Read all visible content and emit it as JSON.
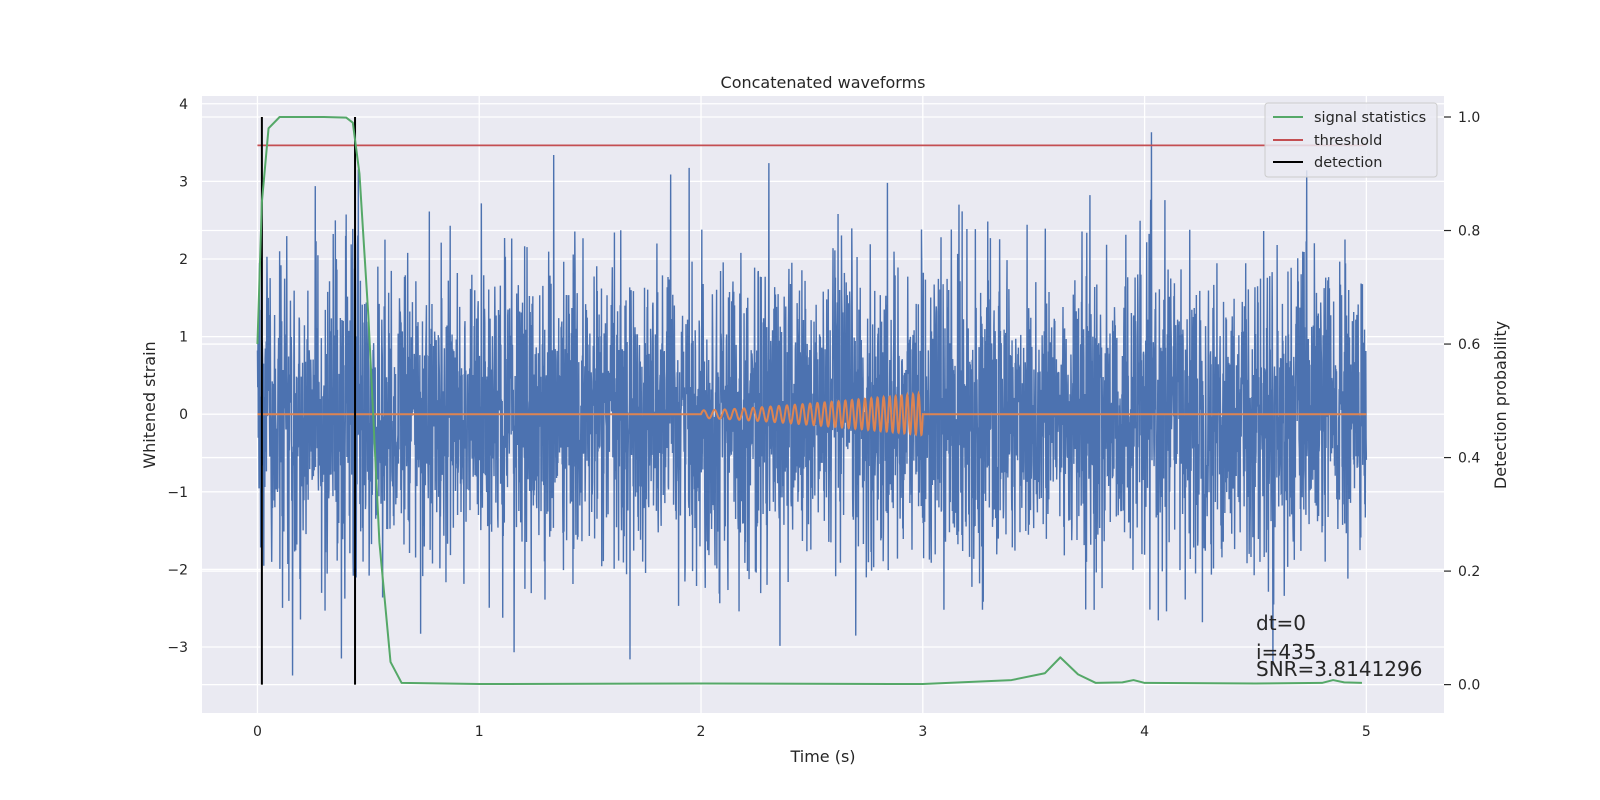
{
  "chart_data": {
    "type": "line",
    "title": "Concatenated waveforms",
    "xlabel": "Time (s)",
    "ylabel": "Whitened strain",
    "ylabel_right": "Detection probability",
    "xlim": [
      -0.25,
      5.35
    ],
    "ylim": [
      -3.85,
      4.1
    ],
    "ylim_right": [
      -0.05,
      1.037
    ],
    "x_ticks": [
      0,
      1,
      2,
      3,
      4,
      5
    ],
    "y_ticks": [
      -3,
      -2,
      -1,
      0,
      1,
      2,
      3,
      4
    ],
    "y_ticks_right": [
      0.0,
      0.2,
      0.4,
      0.6,
      0.8,
      1.0
    ],
    "x_tick_labels": [
      "0",
      "1",
      "2",
      "3",
      "4",
      "5"
    ],
    "y_tick_labels": [
      "−3",
      "−2",
      "−1",
      "0",
      "1",
      "2",
      "3",
      "4"
    ],
    "y_tick_labels_right": [
      "0.0",
      "0.2",
      "0.4",
      "0.6",
      "0.8",
      "1.0"
    ],
    "grid": true,
    "legend_position": "top-right",
    "series": [
      {
        "name": "",
        "axis": "left",
        "color": "#4c72b0",
        "style": "whitened strain noise (approximately Gaussian, sigma ~0.9, peaks ~ -3.5 to 3.7)",
        "x_range": [
          0,
          5
        ]
      },
      {
        "name": "",
        "axis": "left",
        "color": "#dd8452",
        "style": "injected chirp signal between t=2 and t=3, amplitude rising from ~0.05 to ~0.27, zero elsewhere",
        "x": [
          0,
          2,
          2.2,
          2.4,
          2.6,
          2.8,
          3.0,
          5
        ],
        "y": [
          0,
          0.05,
          0.09,
          0.13,
          0.17,
          0.22,
          0.27,
          0
        ]
      },
      {
        "name": "signal statistics",
        "axis": "right",
        "color": "#55a868",
        "x": [
          0,
          0.02,
          0.05,
          0.1,
          0.2,
          0.3,
          0.4,
          0.43,
          0.46,
          0.5,
          0.55,
          0.6,
          0.65,
          1,
          2,
          3,
          3.4,
          3.55,
          3.62,
          3.7,
          3.78,
          3.9,
          3.95,
          4.0,
          4.5,
          4.8,
          4.85,
          4.9,
          4.98
        ],
        "y": [
          0.6,
          0.85,
          0.98,
          1.0,
          1.0,
          1.0,
          0.999,
          0.99,
          0.9,
          0.65,
          0.25,
          0.04,
          0.003,
          0.001,
          0.002,
          0.001,
          0.008,
          0.02,
          0.048,
          0.018,
          0.003,
          0.004,
          0.008,
          0.003,
          0.002,
          0.003,
          0.008,
          0.004,
          0.003
        ]
      },
      {
        "name": "threshold",
        "axis": "right",
        "color": "#c44e52",
        "x": [
          0,
          5
        ],
        "y": [
          0.95,
          0.95
        ]
      },
      {
        "name": "detection",
        "axis": "right",
        "color": "#000000",
        "vlines": [
          0.02,
          0.44
        ],
        "y_span": [
          0,
          1
        ]
      }
    ],
    "annotations": [
      "dt=0",
      "i=435",
      "SNR=3.8141296"
    ]
  },
  "legend": [
    {
      "label": "signal statistics",
      "color": "#55a868"
    },
    {
      "label": "threshold",
      "color": "#c44e52"
    },
    {
      "label": "detection",
      "color": "#000000"
    }
  ],
  "colors": {
    "plot_background": "#eaeaf2",
    "grid": "#ffffff",
    "text": "#262626"
  }
}
